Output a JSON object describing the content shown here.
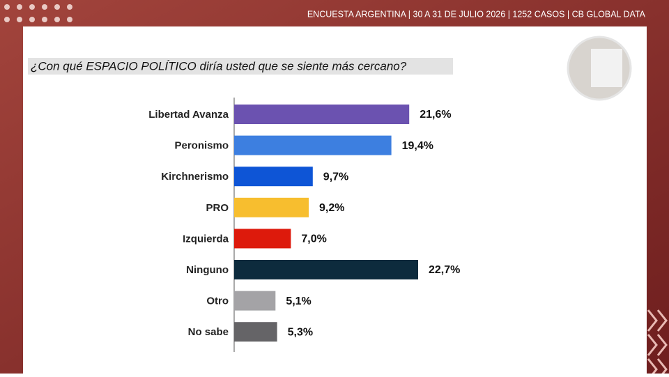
{
  "header": "ENCUESTA ARGENTINA | 30 A 31 DE JULIO 2026 | 1252 CASOS | CB GLOBAL DATA",
  "chart_data": {
    "type": "bar",
    "orientation": "horizontal",
    "title": "¿Con qué ESPACIO POLÍTICO diría usted que se siente más cercano?",
    "categories": [
      "Libertad Avanza",
      "Peronismo",
      "Kirchnerismo",
      "PRO",
      "Izquierda",
      "Ninguno",
      "Otro",
      "No sabe"
    ],
    "values": [
      21.6,
      19.4,
      9.7,
      9.2,
      7.0,
      22.7,
      5.1,
      5.3
    ],
    "value_labels": [
      "21,6%",
      "19,4%",
      "9,7%",
      "9,2%",
      "7,0%",
      "22,7%",
      "5,1%",
      "5,3%"
    ],
    "colors": [
      "#6b52b0",
      "#3d7fe0",
      "#0e55d6",
      "#f7be2f",
      "#dd1a0c",
      "#0d2b3d",
      "#a4a3a6",
      "#656467"
    ]
  }
}
